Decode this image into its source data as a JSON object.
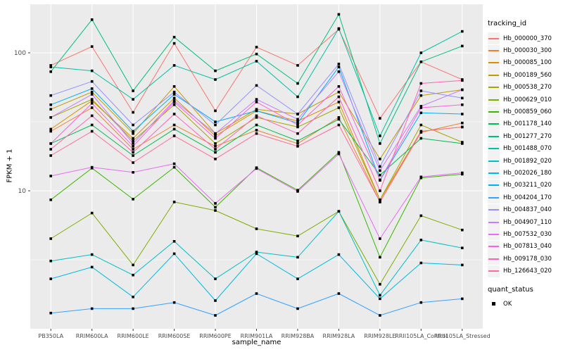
{
  "chart_data": {
    "type": "line",
    "title": "",
    "xlabel": "sample_name",
    "ylabel": "FPKM + 1",
    "y_scale": "log10",
    "y_ticks": [
      10,
      100
    ],
    "y_minor_breaks": [
      3.162,
      31.62
    ],
    "ylim": [
      1,
      225
    ],
    "grid": true,
    "panel_bg": "#EBEBEB",
    "grid_color": "#FFFFFF",
    "tick_label_color": "#4D4D4D",
    "point_color": "#000000",
    "point_shape": "filled-square",
    "categories": [
      "PB350LA",
      "RRIM600LA",
      "RRIM600LE",
      "RRIM600SE",
      "RRIM600PE",
      "RRIM901LA",
      "RRIM928BA",
      "RRIM928LA",
      "RRIM928LE",
      "RRII105LA_Control",
      "RRII105LA_Stressed"
    ],
    "legend": {
      "title": "tracking_id",
      "position": "right"
    },
    "legend2": {
      "title": "quant_status",
      "items": [
        {
          "label": "OK",
          "glyph": "filled-black-square"
        }
      ]
    },
    "series": [
      {
        "name": "Hb_000000_370",
        "color": "#F8766D",
        "values": [
          81,
          111,
          37,
          117,
          38,
          110,
          81,
          148,
          33.5,
          86,
          64
        ]
      },
      {
        "name": "Hb_000030_300",
        "color": "#EA8331",
        "values": [
          27,
          40,
          20,
          30,
          21,
          27.5,
          22,
          34,
          8.3,
          26.5,
          31
        ]
      },
      {
        "name": "Hb_000085_100",
        "color": "#D89000",
        "values": [
          28,
          45,
          24,
          47,
          25,
          38,
          32,
          44,
          8.6,
          27,
          29
        ]
      },
      {
        "name": "Hb_000189_560",
        "color": "#C09B00",
        "values": [
          39,
          52,
          26,
          57,
          26,
          39,
          36,
          52,
          17,
          49,
          54
        ]
      },
      {
        "name": "Hb_000538_270",
        "color": "#A3A500",
        "values": [
          34,
          46,
          23,
          42,
          22,
          34,
          29,
          40,
          8.6,
          30,
          22.5
        ]
      },
      {
        "name": "Hb_000629_010",
        "color": "#7CAE00",
        "values": [
          4.5,
          6.9,
          2.9,
          8.3,
          7.2,
          5.3,
          4.7,
          7.1,
          2.1,
          6.6,
          5.2
        ]
      },
      {
        "name": "Hb_000859_060",
        "color": "#39B600",
        "values": [
          8.6,
          14.6,
          8.7,
          14.8,
          7.6,
          14.7,
          10.1,
          19,
          3.3,
          12.4,
          13.2
        ]
      },
      {
        "name": "Hb_001178_140",
        "color": "#00BB4E",
        "values": [
          22,
          30,
          18,
          28,
          19,
          30,
          23,
          33,
          13,
          24,
          22
        ]
      },
      {
        "name": "Hb_001277_270",
        "color": "#00BF7D",
        "values": [
          73,
          174,
          53,
          130,
          74,
          98,
          60,
          190,
          22,
          86,
          112
        ]
      },
      {
        "name": "Hb_001488_070",
        "color": "#00C1A3",
        "values": [
          79,
          74,
          46,
          81,
          64,
          87,
          48,
          150,
          25,
          100,
          143
        ]
      },
      {
        "name": "Hb_001892_020",
        "color": "#00BFC4",
        "values": [
          3.1,
          3.45,
          2.45,
          4.3,
          2.3,
          3.6,
          3.3,
          7.1,
          1.75,
          4.4,
          3.85
        ]
      },
      {
        "name": "Hb_002026_180",
        "color": "#00BAE0",
        "values": [
          2.3,
          2.8,
          1.7,
          3.5,
          1.6,
          3.5,
          2.3,
          3.45,
          1.65,
          3.0,
          2.9
        ]
      },
      {
        "name": "Hb_003211_020",
        "color": "#00B0F6",
        "values": [
          42,
          55,
          27,
          50,
          31.6,
          38,
          31,
          79,
          11.9,
          36.7,
          36
        ]
      },
      {
        "name": "Hb_004204_170",
        "color": "#35A2FF",
        "values": [
          1.3,
          1.4,
          1.4,
          1.55,
          1.25,
          1.8,
          1.4,
          1.8,
          1.25,
          1.55,
          1.65
        ]
      },
      {
        "name": "Hb_004837_040",
        "color": "#9590FF",
        "values": [
          49,
          62,
          30,
          52,
          30,
          58,
          36,
          83,
          15,
          53,
          47
        ]
      },
      {
        "name": "Hb_004907_110",
        "color": "#C77CFF",
        "values": [
          34,
          50,
          22,
          45,
          26,
          46,
          33,
          73,
          14,
          41,
          54
        ]
      },
      {
        "name": "Hb_007532_030",
        "color": "#E76BF3",
        "values": [
          12.8,
          14.8,
          13.6,
          15.7,
          8.1,
          14.5,
          9.9,
          18.5,
          4.5,
          12.6,
          13.5
        ]
      },
      {
        "name": "Hb_007813_040",
        "color": "#FA62DB",
        "values": [
          22,
          43,
          21,
          44,
          24,
          44,
          30,
          57,
          12,
          40,
          42
        ]
      },
      {
        "name": "Hb_009178_030",
        "color": "#FF62BC",
        "values": [
          20,
          35,
          19,
          36,
          20,
          35,
          26,
          48,
          10,
          60,
          63
        ]
      },
      {
        "name": "Hb_126643_020",
        "color": "#FF6A98",
        "values": [
          18,
          27,
          16,
          25,
          17,
          26,
          21,
          30,
          8.3,
          27,
          29
        ]
      }
    ]
  }
}
